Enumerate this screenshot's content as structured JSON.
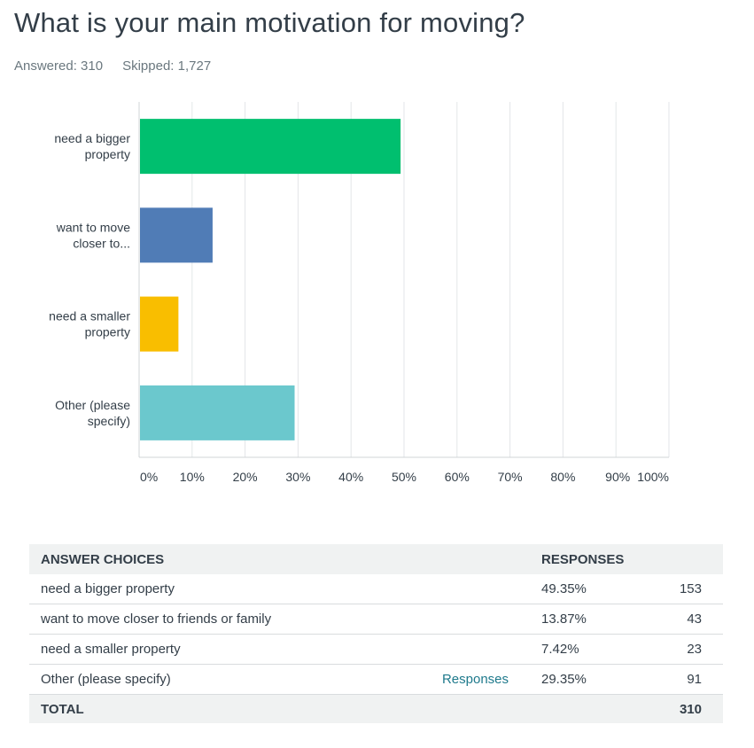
{
  "question": {
    "title": "What is your main motivation for moving?",
    "answered_label": "Answered: 310",
    "skipped_label": "Skipped: 1,727"
  },
  "chart_data": {
    "type": "bar",
    "orientation": "horizontal",
    "categories": [
      [
        "need a bigger",
        "property"
      ],
      [
        "want to move",
        "closer to..."
      ],
      [
        "need a smaller",
        "property"
      ],
      [
        "Other (please",
        "specify)"
      ]
    ],
    "values": [
      49.35,
      13.87,
      7.42,
      29.35
    ],
    "colors": [
      "#00bf6f",
      "#507cb6",
      "#f9be00",
      "#6bc8cd"
    ],
    "xlim": [
      0,
      100
    ],
    "x_ticks": [
      "0%",
      "10%",
      "20%",
      "30%",
      "40%",
      "50%",
      "60%",
      "70%",
      "80%",
      "90%",
      "100%"
    ],
    "grid": true
  },
  "table": {
    "headers": {
      "choices": "ANSWER CHOICES",
      "responses": "RESPONSES"
    },
    "rows": [
      {
        "choice": "need a bigger property",
        "link": "",
        "percent": "49.35%",
        "count": "153"
      },
      {
        "choice": "want to move closer to friends or family",
        "link": "",
        "percent": "13.87%",
        "count": "43"
      },
      {
        "choice": "need a smaller property",
        "link": "",
        "percent": "7.42%",
        "count": "23"
      },
      {
        "choice": "Other (please specify)",
        "link": "Responses",
        "percent": "29.35%",
        "count": "91"
      }
    ],
    "total": {
      "label": "TOTAL",
      "count": "310"
    }
  }
}
